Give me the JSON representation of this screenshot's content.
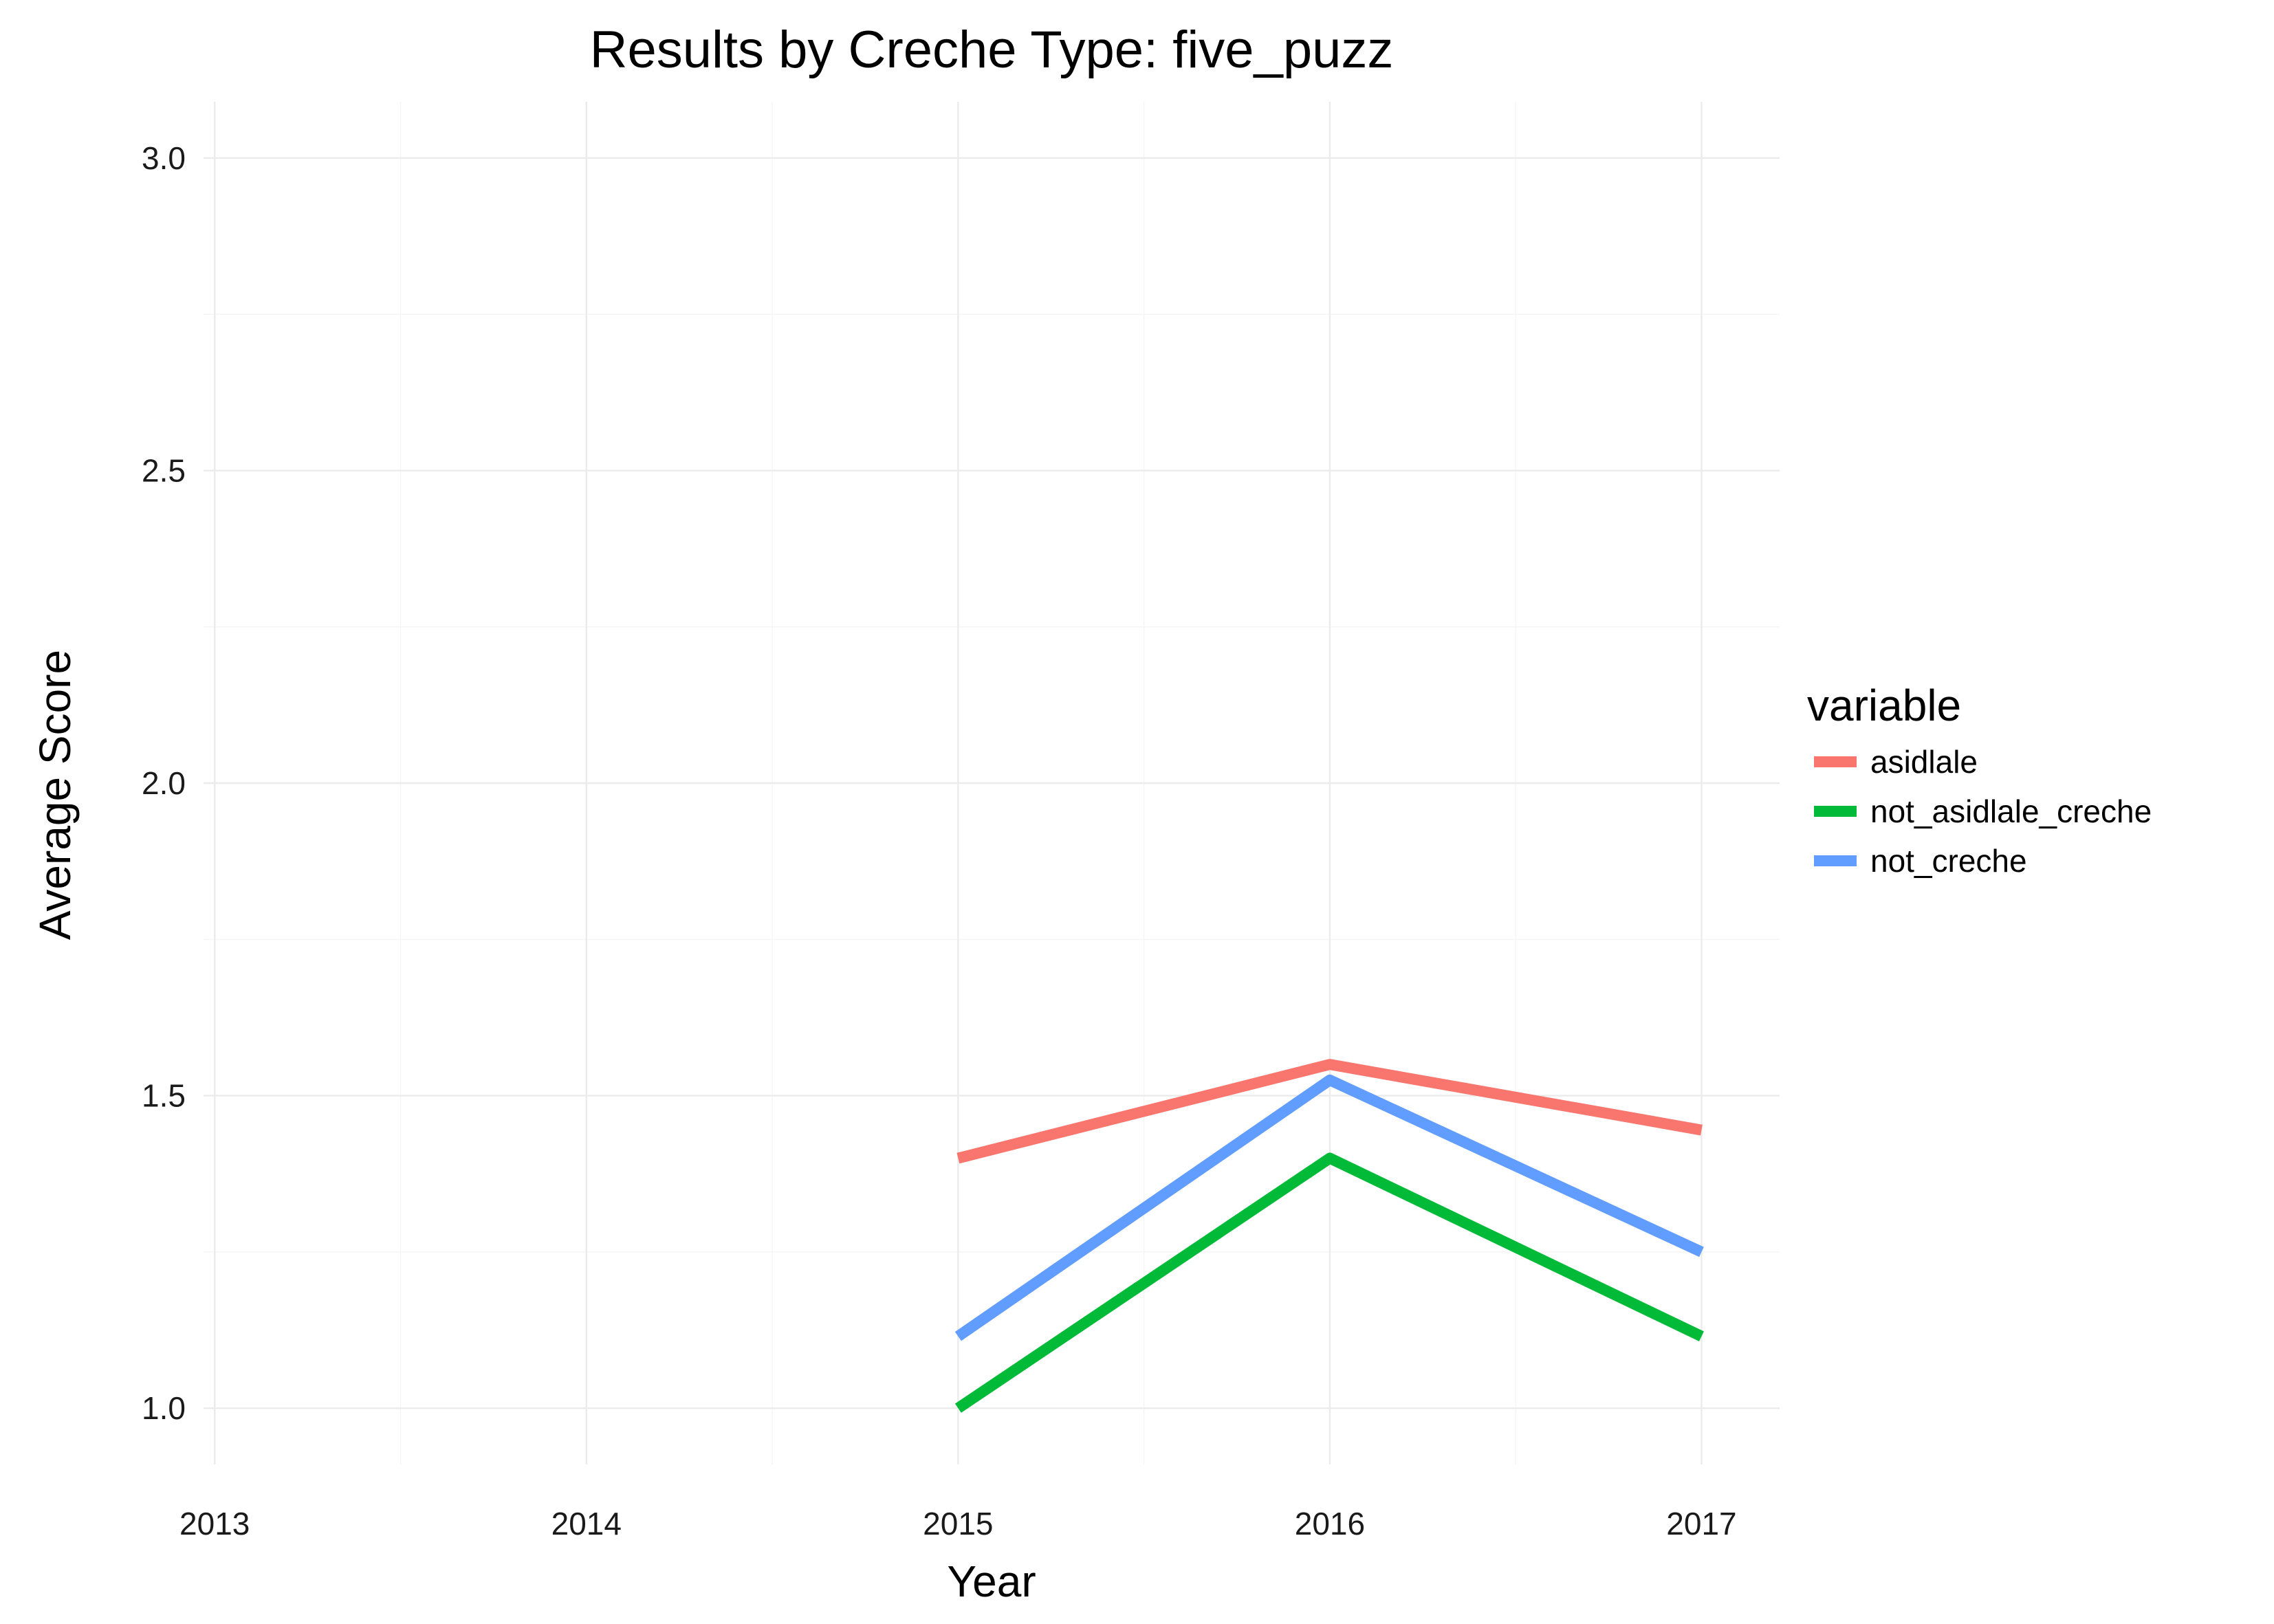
{
  "chart_data": {
    "type": "line",
    "title": "Results by Creche Type: five_puzz",
    "xlabel": "Year",
    "ylabel": "Average Score",
    "x": [
      2013,
      2014,
      2015,
      2016,
      2017
    ],
    "xlim": [
      2012.97,
      2017.21
    ],
    "ylim": [
      0.91,
      3.09
    ],
    "y_ticks": [
      1.0,
      1.5,
      2.0,
      2.5,
      3.0
    ],
    "y_tick_labels": [
      "1.0",
      "1.5",
      "2.0",
      "2.5",
      "3.0"
    ],
    "x_tick_labels": [
      "2013",
      "2014",
      "2015",
      "2016",
      "2017"
    ],
    "grid": true,
    "legend": {
      "title": "variable",
      "position": "right"
    },
    "series": [
      {
        "name": "asidlale",
        "color": "#F8766D",
        "x": [
          2015,
          2016,
          2017
        ],
        "values": [
          1.4,
          1.55,
          1.445
        ]
      },
      {
        "name": "not_asidlale_creche",
        "color": "#00BA38",
        "x": [
          2015,
          2016,
          2017
        ],
        "values": [
          1.0,
          1.4,
          1.115
        ]
      },
      {
        "name": "not_creche",
        "color": "#619CFF",
        "x": [
          2015,
          2016,
          2017
        ],
        "values": [
          1.115,
          1.525,
          1.25
        ]
      }
    ]
  }
}
